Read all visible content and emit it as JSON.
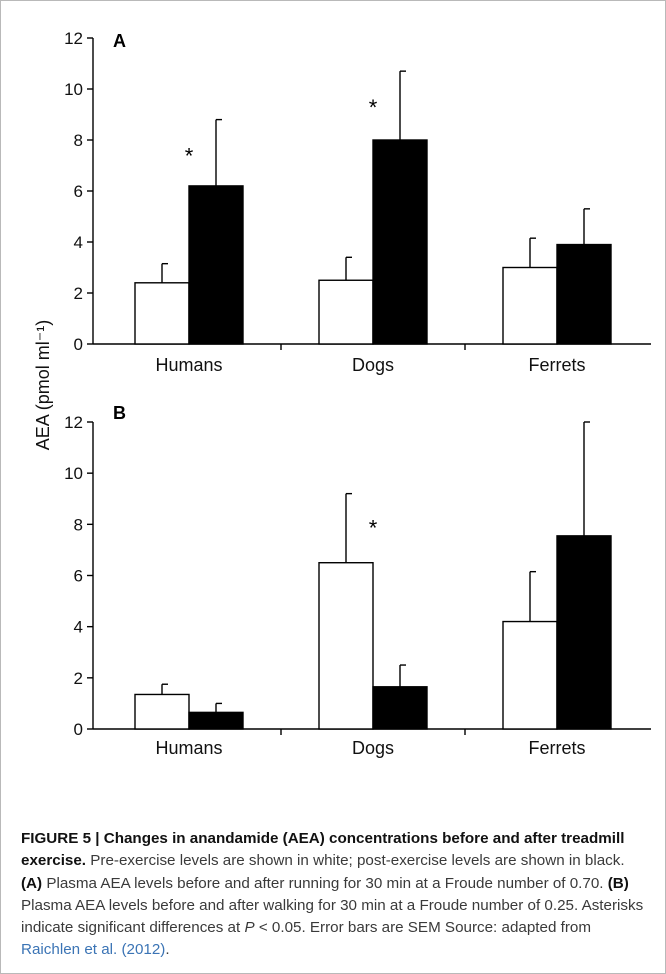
{
  "chart_data": [
    {
      "panel_label": "A",
      "type": "bar",
      "categories": [
        "Humans",
        "Dogs",
        "Ferrets"
      ],
      "series": [
        {
          "values": [
            2.4,
            2.5,
            3.0
          ],
          "errors": [
            0.75,
            0.9,
            1.15
          ],
          "color": "#ffffff"
        },
        {
          "values": [
            6.2,
            8.0,
            3.9
          ],
          "errors": [
            2.6,
            2.7,
            1.4
          ],
          "color": "#000000"
        }
      ],
      "significance": [
        {
          "category": "Humans",
          "marker": "*"
        },
        {
          "category": "Dogs",
          "marker": "*"
        }
      ],
      "ylim": [
        0,
        12
      ],
      "yticks": [
        "0",
        "2",
        "4",
        "6",
        "8",
        "10",
        "12"
      ]
    },
    {
      "panel_label": "B",
      "type": "bar",
      "categories": [
        "Humans",
        "Dogs",
        "Ferrets"
      ],
      "series": [
        {
          "values": [
            1.35,
            6.5,
            4.2
          ],
          "errors": [
            0.4,
            2.7,
            1.95
          ],
          "color": "#ffffff"
        },
        {
          "values": [
            0.65,
            1.65,
            7.55
          ],
          "errors": [
            0.35,
            0.85,
            4.45
          ],
          "color": "#000000"
        }
      ],
      "significance": [
        {
          "category": "Dogs",
          "marker": "*"
        }
      ],
      "ylim": [
        0,
        12
      ],
      "yticks": [
        "0",
        "2",
        "4",
        "6",
        "8",
        "10",
        "12"
      ]
    }
  ],
  "shared_ylabel": "AEA (pmol ml⁻¹)",
  "caption": {
    "figure_title": "FIGURE 5 | Changes in anandamide (AEA) concentrations before and after treadmill exercise.",
    "text_1": " Pre-exercise levels are shown in white; post-exercise levels are shown in black. ",
    "label_a": "(A)",
    "text_a": " Plasma AEA levels before and after running for 30 min at a Froude number of 0.70. ",
    "label_b": "(B)",
    "text_b": " Plasma AEA levels before and after walking for 30 min at a Froude number of 0.25. Asterisks indicate significant differences at ",
    "p_symbol": "P",
    "text_p": " < 0.05. Error bars are SEM Source: adapted from ",
    "reference_link": "Raichlen et al. (2012)",
    "text_end": "."
  }
}
